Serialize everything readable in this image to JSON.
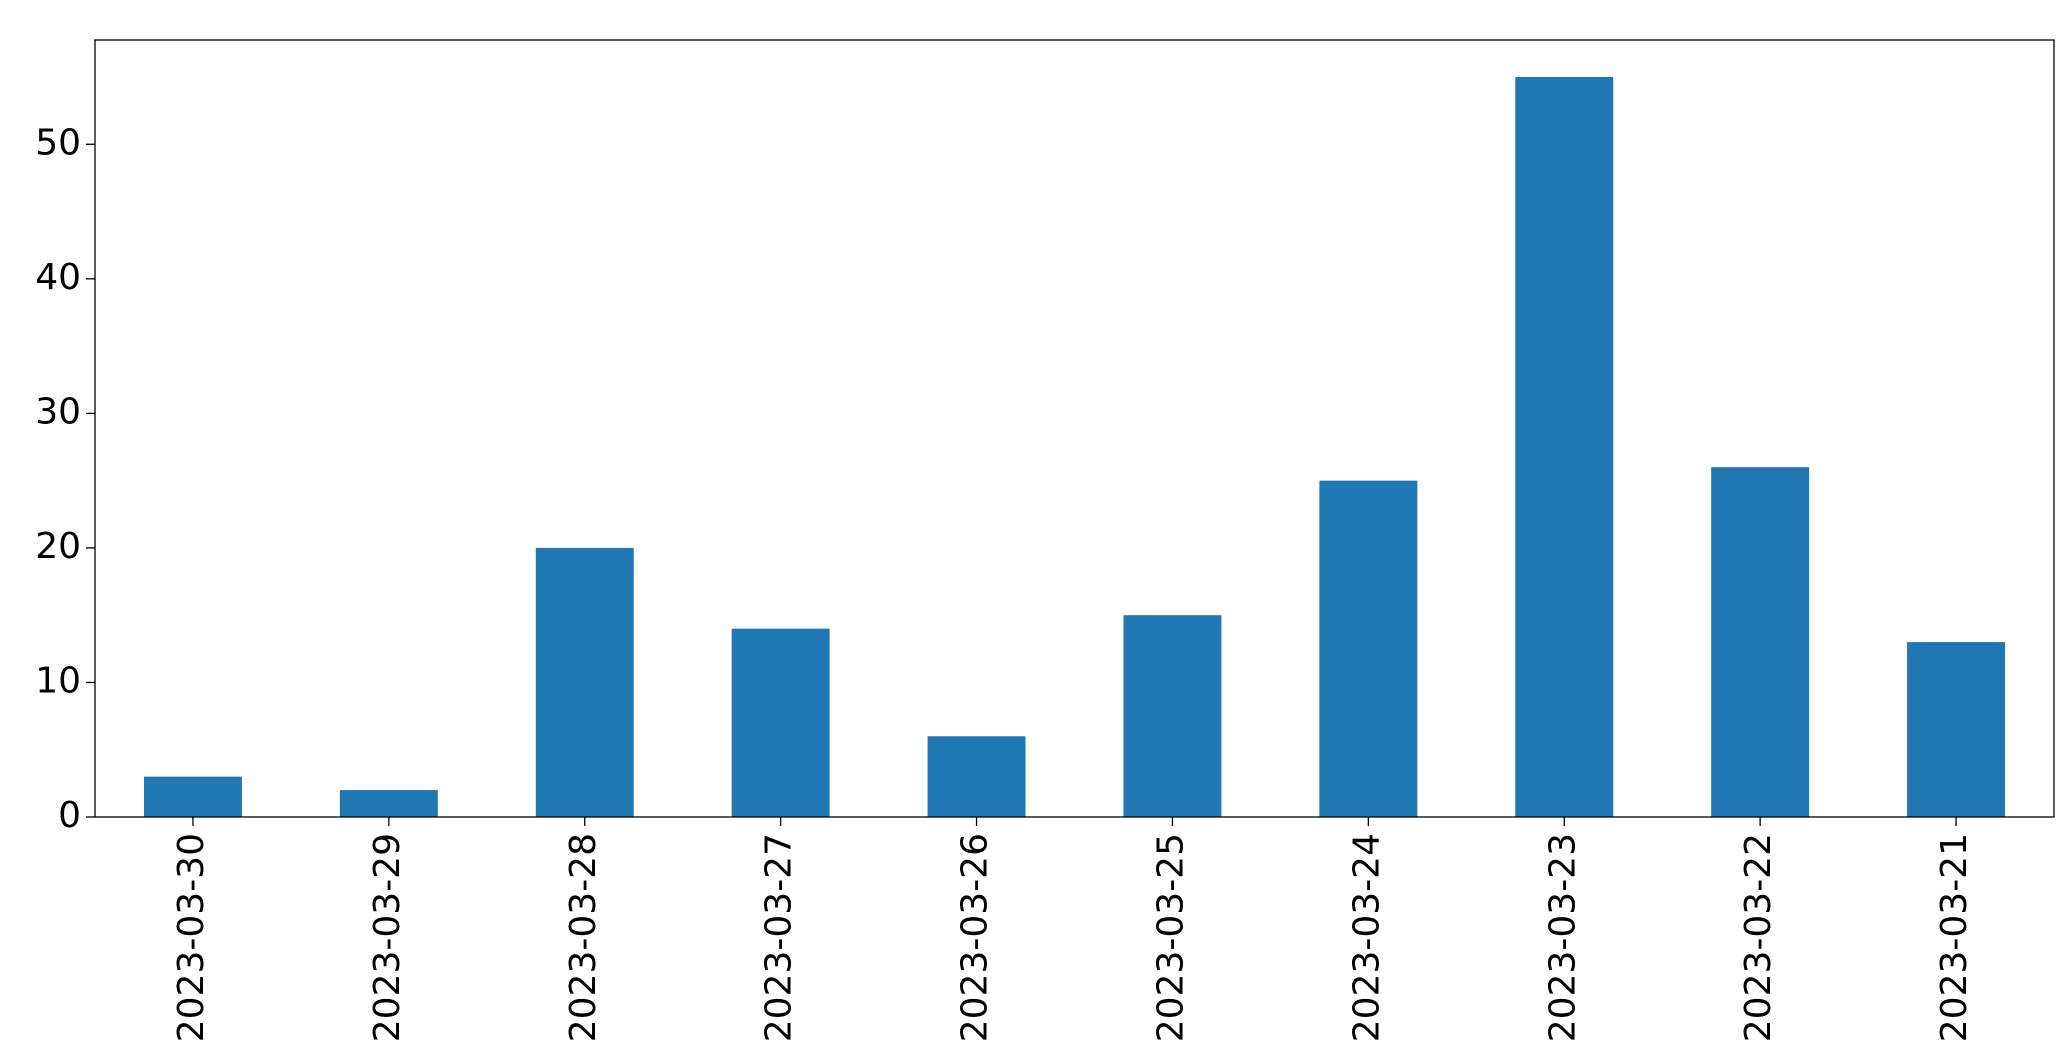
{
  "chart_data": {
    "type": "bar",
    "categories": [
      "2023-03-30",
      "2023-03-29",
      "2023-03-28",
      "2023-03-27",
      "2023-03-26",
      "2023-03-25",
      "2023-03-24",
      "2023-03-23",
      "2023-03-22",
      "2023-03-21"
    ],
    "values": [
      3,
      2,
      20,
      14,
      6,
      15,
      25,
      55,
      26,
      13
    ],
    "color": "#1f77b4",
    "ylim": [
      0,
      57.75
    ],
    "yticks": [
      0,
      10,
      20,
      30,
      40,
      50
    ],
    "grid": false
  }
}
